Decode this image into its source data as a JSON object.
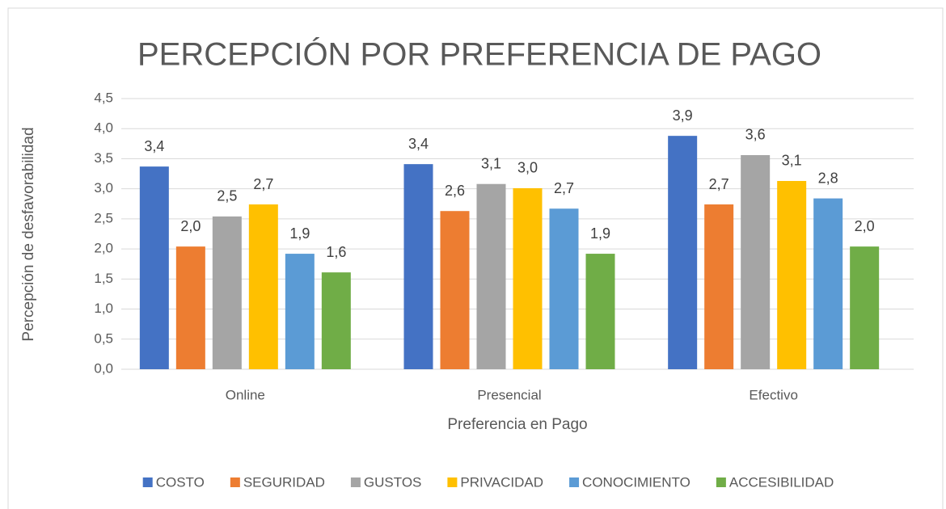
{
  "chart_data": {
    "type": "bar",
    "title": "PERCEPCIÓN POR PREFERENCIA DE PAGO",
    "x_label": "Preferencia en Pago",
    "y_label": "Percepción de desfavorabilidad",
    "categories": [
      "Online",
      "Presencial",
      "Efectivo"
    ],
    "series": [
      {
        "name": "COSTO",
        "color": "#4472c4",
        "values": [
          3.37,
          3.41,
          3.88
        ],
        "value_labels": [
          "3,4",
          "3,4",
          "3,9"
        ]
      },
      {
        "name": "SEGURIDAD",
        "color": "#ed7d31",
        "values": [
          2.04,
          2.63,
          2.74
        ],
        "value_labels": [
          "2,0",
          "2,6",
          "2,7"
        ]
      },
      {
        "name": "GUSTOS",
        "color": "#a5a5a5",
        "values": [
          2.54,
          3.08,
          3.56
        ],
        "value_labels": [
          "2,5",
          "3,1",
          "3,6"
        ]
      },
      {
        "name": "PRIVACIDAD",
        "color": "#ffc000",
        "values": [
          2.74,
          3.01,
          3.13
        ],
        "value_labels": [
          "2,7",
          "3,0",
          "3,1"
        ]
      },
      {
        "name": "CONOCIMIENTO",
        "color": "#5b9bd5",
        "values": [
          1.92,
          2.67,
          2.84
        ],
        "value_labels": [
          "1,9",
          "2,7",
          "2,8"
        ]
      },
      {
        "name": "ACCESIBILIDAD",
        "color": "#70ad47",
        "values": [
          1.61,
          1.92,
          2.04
        ],
        "value_labels": [
          "1,6",
          "1,9",
          "2,0"
        ]
      }
    ],
    "ylim": [
      0,
      4.5
    ],
    "yticks": [
      {
        "value": 0,
        "label": "0,0"
      },
      {
        "value": 0.5,
        "label": "0,5"
      },
      {
        "value": 1,
        "label": "1,0"
      },
      {
        "value": 1.5,
        "label": "1,5"
      },
      {
        "value": 2,
        "label": "2,0"
      },
      {
        "value": 2.5,
        "label": "2,5"
      },
      {
        "value": 3,
        "label": "3,0"
      },
      {
        "value": 3.5,
        "label": "3,5"
      },
      {
        "value": 4,
        "label": "4,0"
      },
      {
        "value": 4.5,
        "label": "4,5"
      }
    ],
    "grid": true,
    "legend": "bottom"
  }
}
